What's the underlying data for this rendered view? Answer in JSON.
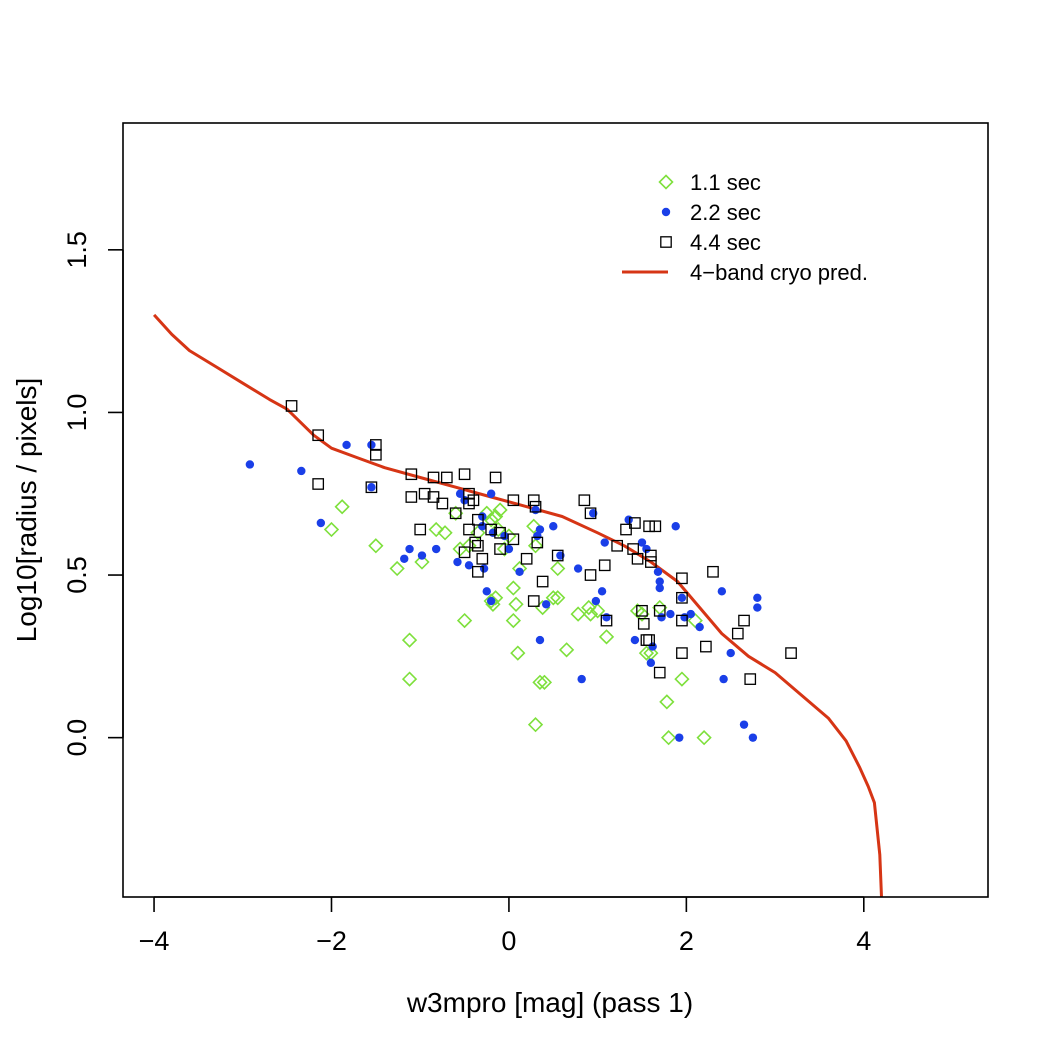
{
  "chart_data": {
    "type": "scatter",
    "title": "",
    "xlabel": "w3mpro [mag]  (pass 1)",
    "ylabel": "Log10[radius / pixels]",
    "xlim": [
      -4.35,
      5.4
    ],
    "ylim": [
      -0.49,
      1.89
    ],
    "xticks": [
      -4,
      -2,
      0,
      2,
      4
    ],
    "xtick_labels": [
      "−4",
      "−2",
      "0",
      "2",
      "4"
    ],
    "yticks": [
      0.0,
      0.5,
      1.0,
      1.5
    ],
    "ytick_labels": [
      "0.0",
      "0.5",
      "1.0",
      "1.5"
    ],
    "grid": false,
    "legend_position": "top-right",
    "series": [
      {
        "name": "1.1 sec",
        "marker": "diamond-open",
        "color": "#7ee03c",
        "points": [
          [
            -2.0,
            0.64
          ],
          [
            -1.88,
            0.71
          ],
          [
            -1.5,
            0.59
          ],
          [
            -1.26,
            0.52
          ],
          [
            -1.12,
            0.3
          ],
          [
            -1.12,
            0.18
          ],
          [
            -0.98,
            0.54
          ],
          [
            -0.82,
            0.64
          ],
          [
            -0.72,
            0.63
          ],
          [
            -0.6,
            0.69
          ],
          [
            -0.55,
            0.58
          ],
          [
            -0.5,
            0.36
          ],
          [
            -0.45,
            0.59
          ],
          [
            -0.35,
            0.63
          ],
          [
            -0.25,
            0.69
          ],
          [
            -0.2,
            0.67
          ],
          [
            -0.15,
            0.68
          ],
          [
            -0.12,
            0.64
          ],
          [
            -0.1,
            0.7
          ],
          [
            -0.05,
            0.58
          ],
          [
            0.0,
            0.62
          ],
          [
            0.05,
            0.46
          ],
          [
            0.08,
            0.41
          ],
          [
            0.12,
            0.52
          ],
          [
            0.28,
            0.65
          ],
          [
            0.3,
            0.59
          ],
          [
            0.38,
            0.4
          ],
          [
            0.5,
            0.43
          ],
          [
            0.55,
            0.43
          ],
          [
            -0.2,
            0.42
          ],
          [
            -0.15,
            0.43
          ],
          [
            -0.18,
            0.41
          ],
          [
            0.05,
            0.36
          ],
          [
            0.1,
            0.26
          ],
          [
            0.35,
            0.17
          ],
          [
            0.4,
            0.17
          ],
          [
            0.3,
            0.04
          ],
          [
            0.55,
            0.52
          ],
          [
            0.65,
            0.27
          ],
          [
            0.78,
            0.38
          ],
          [
            0.9,
            0.4
          ],
          [
            0.92,
            0.38
          ],
          [
            1.0,
            0.39
          ],
          [
            1.1,
            0.31
          ],
          [
            1.45,
            0.39
          ],
          [
            1.5,
            0.38
          ],
          [
            1.55,
            0.26
          ],
          [
            1.6,
            0.26
          ],
          [
            1.7,
            0.4
          ],
          [
            1.78,
            0.11
          ],
          [
            1.8,
            0.0
          ],
          [
            1.95,
            0.18
          ],
          [
            2.1,
            0.36
          ],
          [
            2.2,
            0.0
          ]
        ]
      },
      {
        "name": "2.2 sec",
        "marker": "dot",
        "color": "#1a3fe8",
        "points": [
          [
            -2.92,
            0.84
          ],
          [
            -2.34,
            0.82
          ],
          [
            -2.12,
            0.66
          ],
          [
            -1.83,
            0.9
          ],
          [
            -1.55,
            0.77
          ],
          [
            -1.55,
            0.9
          ],
          [
            -1.18,
            0.55
          ],
          [
            -1.12,
            0.58
          ],
          [
            -0.98,
            0.56
          ],
          [
            -0.82,
            0.58
          ],
          [
            -0.58,
            0.54
          ],
          [
            -0.55,
            0.75
          ],
          [
            -0.5,
            0.73
          ],
          [
            -0.45,
            0.53
          ],
          [
            -0.3,
            0.68
          ],
          [
            -0.3,
            0.65
          ],
          [
            -0.2,
            0.75
          ],
          [
            -0.18,
            0.63
          ],
          [
            -0.28,
            0.52
          ],
          [
            -0.25,
            0.45
          ],
          [
            -0.2,
            0.42
          ],
          [
            -0.05,
            0.62
          ],
          [
            0.0,
            0.58
          ],
          [
            0.12,
            0.51
          ],
          [
            0.3,
            0.7
          ],
          [
            0.32,
            0.62
          ],
          [
            0.35,
            0.64
          ],
          [
            0.35,
            0.3
          ],
          [
            0.42,
            0.41
          ],
          [
            0.5,
            0.65
          ],
          [
            0.58,
            0.56
          ],
          [
            0.78,
            0.52
          ],
          [
            0.82,
            0.18
          ],
          [
            0.95,
            0.69
          ],
          [
            0.98,
            0.42
          ],
          [
            1.05,
            0.45
          ],
          [
            1.08,
            0.6
          ],
          [
            1.1,
            0.37
          ],
          [
            1.35,
            0.67
          ],
          [
            1.42,
            0.3
          ],
          [
            1.5,
            0.6
          ],
          [
            1.55,
            0.58
          ],
          [
            1.6,
            0.23
          ],
          [
            1.62,
            0.28
          ],
          [
            1.68,
            0.51
          ],
          [
            1.7,
            0.48
          ],
          [
            1.7,
            0.46
          ],
          [
            1.72,
            0.37
          ],
          [
            1.82,
            0.38
          ],
          [
            1.88,
            0.65
          ],
          [
            1.92,
            0.0
          ],
          [
            1.95,
            0.43
          ],
          [
            1.98,
            0.37
          ],
          [
            2.05,
            0.38
          ],
          [
            2.15,
            0.34
          ],
          [
            2.4,
            0.45
          ],
          [
            2.42,
            0.18
          ],
          [
            2.5,
            0.26
          ],
          [
            2.65,
            0.04
          ],
          [
            2.75,
            0.0
          ],
          [
            2.8,
            0.43
          ],
          [
            2.8,
            0.4
          ]
        ]
      },
      {
        "name": "4.4 sec",
        "marker": "square-open",
        "color": "#000000",
        "points": [
          [
            -2.45,
            1.02
          ],
          [
            -2.15,
            0.93
          ],
          [
            -2.15,
            0.78
          ],
          [
            -1.5,
            0.9
          ],
          [
            -1.5,
            0.87
          ],
          [
            -1.55,
            0.77
          ],
          [
            -1.1,
            0.81
          ],
          [
            -1.1,
            0.74
          ],
          [
            -0.95,
            0.75
          ],
          [
            -1.0,
            0.64
          ],
          [
            -0.85,
            0.8
          ],
          [
            -0.85,
            0.74
          ],
          [
            -0.75,
            0.72
          ],
          [
            -0.7,
            0.8
          ],
          [
            -0.6,
            0.69
          ],
          [
            -0.5,
            0.81
          ],
          [
            -0.45,
            0.75
          ],
          [
            -0.45,
            0.72
          ],
          [
            -0.45,
            0.64
          ],
          [
            -0.38,
            0.6
          ],
          [
            -0.35,
            0.59
          ],
          [
            -0.4,
            0.73
          ],
          [
            -0.35,
            0.67
          ],
          [
            -0.5,
            0.57
          ],
          [
            -0.35,
            0.51
          ],
          [
            -0.3,
            0.55
          ],
          [
            -0.2,
            0.64
          ],
          [
            -0.15,
            0.8
          ],
          [
            -0.1,
            0.63
          ],
          [
            -0.1,
            0.58
          ],
          [
            0.05,
            0.73
          ],
          [
            0.05,
            0.61
          ],
          [
            0.2,
            0.55
          ],
          [
            0.28,
            0.73
          ],
          [
            0.3,
            0.71
          ],
          [
            0.28,
            0.42
          ],
          [
            0.32,
            0.6
          ],
          [
            0.38,
            0.48
          ],
          [
            0.55,
            0.56
          ],
          [
            0.85,
            0.73
          ],
          [
            0.92,
            0.69
          ],
          [
            0.92,
            0.5
          ],
          [
            1.08,
            0.53
          ],
          [
            1.1,
            0.36
          ],
          [
            1.22,
            0.59
          ],
          [
            1.32,
            0.64
          ],
          [
            1.4,
            0.58
          ],
          [
            1.45,
            0.55
          ],
          [
            1.42,
            0.66
          ],
          [
            1.5,
            0.39
          ],
          [
            1.52,
            0.35
          ],
          [
            1.55,
            0.3
          ],
          [
            1.58,
            0.3
          ],
          [
            1.58,
            0.65
          ],
          [
            1.65,
            0.65
          ],
          [
            1.6,
            0.56
          ],
          [
            1.6,
            0.54
          ],
          [
            1.7,
            0.39
          ],
          [
            1.7,
            0.2
          ],
          [
            1.95,
            0.49
          ],
          [
            1.95,
            0.43
          ],
          [
            1.95,
            0.36
          ],
          [
            1.95,
            0.26
          ],
          [
            2.22,
            0.28
          ],
          [
            2.3,
            0.51
          ],
          [
            2.58,
            0.32
          ],
          [
            2.65,
            0.36
          ],
          [
            2.72,
            0.18
          ],
          [
            3.18,
            0.26
          ]
        ]
      },
      {
        "name": "4−band cryo pred.",
        "marker": "line",
        "color": "#d63515",
        "points": [
          [
            -4.0,
            1.3
          ],
          [
            -3.8,
            1.24
          ],
          [
            -3.6,
            1.19
          ],
          [
            -3.3,
            1.14
          ],
          [
            -3.0,
            1.09
          ],
          [
            -2.7,
            1.04
          ],
          [
            -2.5,
            1.01
          ],
          [
            -2.2,
            0.93
          ],
          [
            -2.0,
            0.89
          ],
          [
            -1.7,
            0.86
          ],
          [
            -1.4,
            0.83
          ],
          [
            -1.0,
            0.8
          ],
          [
            -0.6,
            0.77
          ],
          [
            -0.2,
            0.74
          ],
          [
            0.2,
            0.71
          ],
          [
            0.6,
            0.68
          ],
          [
            1.0,
            0.63
          ],
          [
            1.3,
            0.59
          ],
          [
            1.6,
            0.54
          ],
          [
            1.9,
            0.48
          ],
          [
            2.15,
            0.4
          ],
          [
            2.4,
            0.32
          ],
          [
            2.7,
            0.25
          ],
          [
            3.0,
            0.2
          ],
          [
            3.3,
            0.13
          ],
          [
            3.6,
            0.06
          ],
          [
            3.8,
            -0.01
          ],
          [
            3.95,
            -0.09
          ],
          [
            4.05,
            -0.15
          ],
          [
            4.12,
            -0.2
          ],
          [
            4.18,
            -0.36
          ],
          [
            4.2,
            -0.49
          ]
        ]
      }
    ]
  }
}
